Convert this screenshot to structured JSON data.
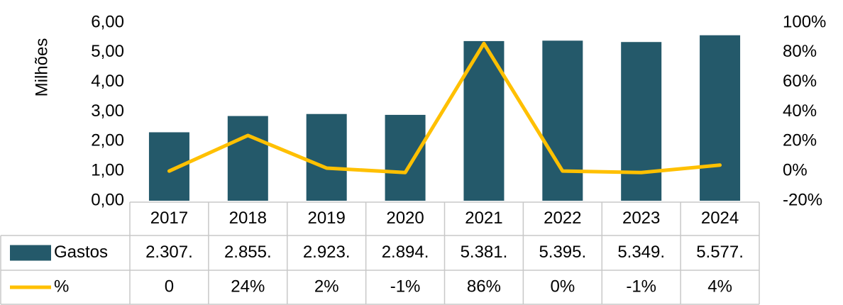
{
  "chart_data": {
    "type": "bar",
    "ylabel": "Milhões",
    "categories": [
      "2017",
      "2018",
      "2019",
      "2020",
      "2021",
      "2022",
      "2023",
      "2024"
    ],
    "series": [
      {
        "name": "Gastos",
        "color": "#24596a",
        "values": [
          2.307,
          2.855,
          2.923,
          2.894,
          5.381,
          5.395,
          5.349,
          5.577
        ],
        "value_labels": [
          "2.307.",
          "2.855.",
          "2.923.",
          "2.894.",
          "5.381.",
          "5.395.",
          "5.349.",
          "5.577."
        ]
      },
      {
        "name": "%",
        "type": "line",
        "axis": "y2",
        "color": "#ffc000",
        "values": [
          0,
          24,
          2,
          -1,
          86,
          0,
          -1,
          4
        ],
        "value_labels": [
          "0",
          "24%",
          "2%",
          "-1%",
          "86%",
          "0%",
          "-1%",
          "4%"
        ]
      }
    ],
    "ylim": [
      0,
      6
    ],
    "yticks": [
      {
        "value": 0,
        "label": "0,00"
      },
      {
        "value": 1,
        "label": "1,00"
      },
      {
        "value": 2,
        "label": "2,00"
      },
      {
        "value": 3,
        "label": "3,00"
      },
      {
        "value": 4,
        "label": "4,00"
      },
      {
        "value": 5,
        "label": "5,00"
      },
      {
        "value": 6,
        "label": "6,00"
      }
    ],
    "y2lim": [
      -20,
      100
    ],
    "y2ticks": [
      {
        "value": -20,
        "label": "-20%"
      },
      {
        "value": 0,
        "label": "0%"
      },
      {
        "value": 20,
        "label": "20%"
      },
      {
        "value": 40,
        "label": "40%"
      },
      {
        "value": 60,
        "label": "60%"
      },
      {
        "value": 80,
        "label": "80%"
      },
      {
        "value": 100,
        "label": "100%"
      }
    ]
  }
}
